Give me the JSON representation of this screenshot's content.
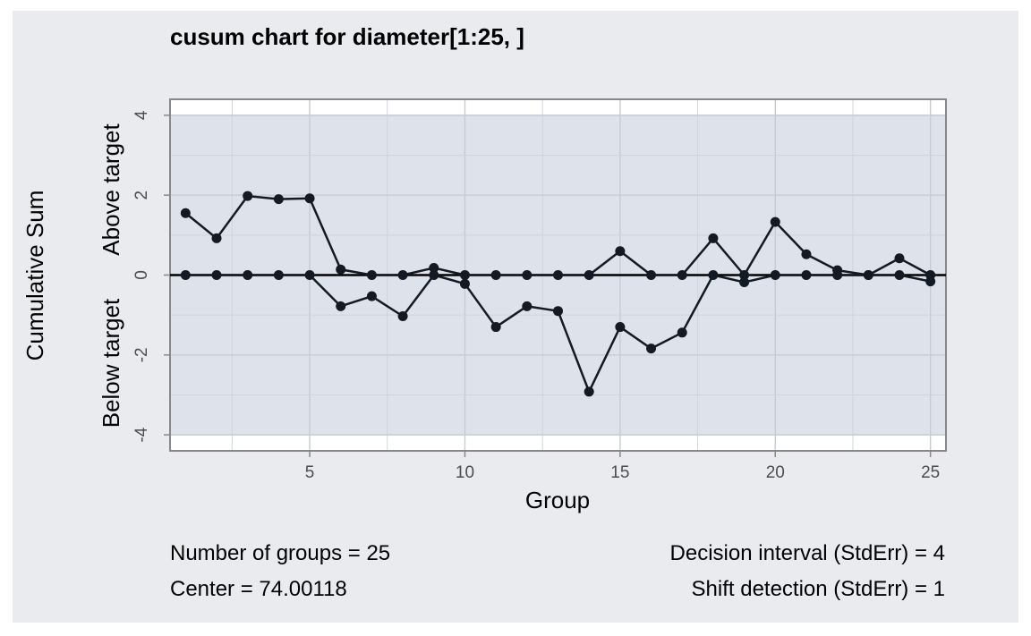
{
  "chart_data": {
    "type": "line",
    "title": "cusum chart for diameter[1:25, ]",
    "xlabel": "Group",
    "ylabel": "Cumulative Sum",
    "ylabel_upper": "Above target",
    "ylabel_lower": "Below target",
    "xlim": [
      0.5,
      25.5
    ],
    "ylim": [
      -4.4,
      4.4
    ],
    "xticks": [
      5,
      10,
      15,
      20,
      25
    ],
    "yticks": [
      4,
      2,
      0,
      -2,
      -4
    ],
    "decision_limits": [
      4,
      -4
    ],
    "center_line": 0,
    "x": [
      1,
      2,
      3,
      4,
      5,
      6,
      7,
      8,
      9,
      10,
      11,
      12,
      13,
      14,
      15,
      16,
      17,
      18,
      19,
      20,
      21,
      22,
      23,
      24,
      25
    ],
    "series": [
      {
        "values": [
          1.55,
          0.92,
          1.98,
          1.9,
          1.92,
          0.14,
          0,
          0,
          0.18,
          0,
          0,
          0,
          0,
          0,
          0.6,
          0,
          0,
          0.92,
          0,
          1.33,
          0.52,
          0.12,
          0,
          0.42,
          0
        ]
      },
      {
        "values": [
          0,
          0,
          0,
          0,
          0,
          -0.78,
          -0.53,
          -1.03,
          0,
          -0.22,
          -1.3,
          -0.78,
          -0.9,
          -2.92,
          -1.3,
          -1.84,
          -1.44,
          0,
          -0.18,
          0,
          0,
          0,
          0,
          0,
          -0.16
        ]
      }
    ],
    "grid": true
  },
  "stats": {
    "groups": "Number of groups = 25",
    "center": "Center = 74.00118",
    "decision": "Decision interval (StdErr) = 4",
    "shift": "Shift detection (StdErr) = 1"
  }
}
